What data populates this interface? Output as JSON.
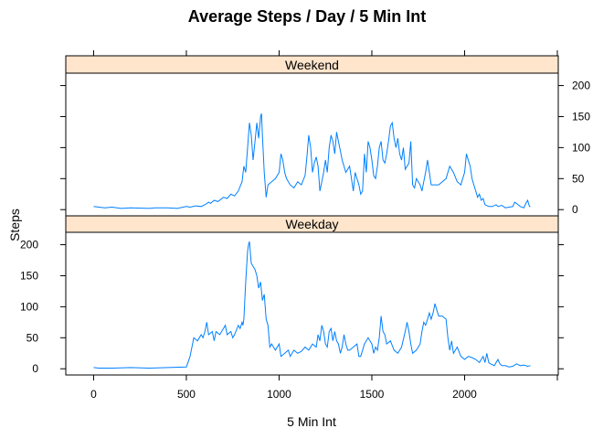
{
  "chart_data": {
    "type": "line",
    "title": "Average Steps / Day / 5 Min Int",
    "xlabel": "5 Min Int",
    "ylabel": "Steps",
    "xlim": [
      -150,
      2505
    ],
    "ylim": [
      -10,
      220
    ],
    "x_ticks": [
      0,
      500,
      1000,
      1500,
      2000
    ],
    "y_ticks": [
      0,
      50,
      100,
      150,
      200
    ],
    "grid": false,
    "legend": "none",
    "color": "#0080ff",
    "strip_color": "#ffe5cc",
    "panels": [
      {
        "name": "Weekend",
        "points": [
          [
            0,
            5
          ],
          [
            30,
            4
          ],
          [
            60,
            3
          ],
          [
            100,
            4
          ],
          [
            150,
            2
          ],
          [
            200,
            3
          ],
          [
            300,
            2
          ],
          [
            330,
            3
          ],
          [
            400,
            3
          ],
          [
            450,
            2
          ],
          [
            500,
            5
          ],
          [
            520,
            4
          ],
          [
            550,
            6
          ],
          [
            580,
            5
          ],
          [
            600,
            8
          ],
          [
            620,
            12
          ],
          [
            630,
            10
          ],
          [
            650,
            15
          ],
          [
            670,
            13
          ],
          [
            700,
            20
          ],
          [
            720,
            18
          ],
          [
            740,
            25
          ],
          [
            760,
            22
          ],
          [
            780,
            30
          ],
          [
            800,
            45
          ],
          [
            810,
            70
          ],
          [
            820,
            60
          ],
          [
            830,
            100
          ],
          [
            840,
            140
          ],
          [
            850,
            120
          ],
          [
            860,
            80
          ],
          [
            870,
            110
          ],
          [
            880,
            140
          ],
          [
            890,
            115
          ],
          [
            900,
            150
          ],
          [
            905,
            155
          ],
          [
            910,
            120
          ],
          [
            920,
            60
          ],
          [
            930,
            20
          ],
          [
            940,
            40
          ],
          [
            960,
            45
          ],
          [
            980,
            50
          ],
          [
            1000,
            60
          ],
          [
            1010,
            90
          ],
          [
            1020,
            80
          ],
          [
            1030,
            60
          ],
          [
            1040,
            50
          ],
          [
            1050,
            45
          ],
          [
            1060,
            40
          ],
          [
            1080,
            35
          ],
          [
            1100,
            45
          ],
          [
            1120,
            40
          ],
          [
            1140,
            55
          ],
          [
            1150,
            85
          ],
          [
            1160,
            120
          ],
          [
            1170,
            100
          ],
          [
            1180,
            60
          ],
          [
            1190,
            75
          ],
          [
            1200,
            85
          ],
          [
            1210,
            70
          ],
          [
            1220,
            30
          ],
          [
            1230,
            45
          ],
          [
            1240,
            60
          ],
          [
            1250,
            80
          ],
          [
            1260,
            60
          ],
          [
            1270,
            100
          ],
          [
            1280,
            120
          ],
          [
            1290,
            110
          ],
          [
            1300,
            90
          ],
          [
            1310,
            125
          ],
          [
            1320,
            110
          ],
          [
            1330,
            95
          ],
          [
            1340,
            80
          ],
          [
            1360,
            60
          ],
          [
            1380,
            70
          ],
          [
            1400,
            30
          ],
          [
            1410,
            60
          ],
          [
            1420,
            50
          ],
          [
            1430,
            40
          ],
          [
            1440,
            25
          ],
          [
            1450,
            30
          ],
          [
            1460,
            90
          ],
          [
            1470,
            60
          ],
          [
            1480,
            110
          ],
          [
            1490,
            100
          ],
          [
            1500,
            80
          ],
          [
            1510,
            55
          ],
          [
            1520,
            50
          ],
          [
            1530,
            70
          ],
          [
            1540,
            100
          ],
          [
            1550,
            110
          ],
          [
            1560,
            80
          ],
          [
            1570,
            75
          ],
          [
            1580,
            90
          ],
          [
            1590,
            110
          ],
          [
            1600,
            135
          ],
          [
            1610,
            140
          ],
          [
            1620,
            115
          ],
          [
            1630,
            100
          ],
          [
            1640,
            115
          ],
          [
            1650,
            90
          ],
          [
            1660,
            80
          ],
          [
            1670,
            100
          ],
          [
            1680,
            65
          ],
          [
            1690,
            70
          ],
          [
            1700,
            75
          ],
          [
            1710,
            110
          ],
          [
            1720,
            40
          ],
          [
            1730,
            35
          ],
          [
            1740,
            50
          ],
          [
            1760,
            40
          ],
          [
            1770,
            30
          ],
          [
            1780,
            45
          ],
          [
            1790,
            60
          ],
          [
            1800,
            80
          ],
          [
            1810,
            60
          ],
          [
            1820,
            40
          ],
          [
            1840,
            40
          ],
          [
            1860,
            40
          ],
          [
            1880,
            45
          ],
          [
            1900,
            50
          ],
          [
            1920,
            70
          ],
          [
            1940,
            60
          ],
          [
            1960,
            45
          ],
          [
            1980,
            40
          ],
          [
            1990,
            50
          ],
          [
            2000,
            60
          ],
          [
            2010,
            90
          ],
          [
            2020,
            80
          ],
          [
            2030,
            70
          ],
          [
            2040,
            50
          ],
          [
            2050,
            40
          ],
          [
            2060,
            30
          ],
          [
            2070,
            20
          ],
          [
            2080,
            25
          ],
          [
            2090,
            15
          ],
          [
            2100,
            18
          ],
          [
            2110,
            8
          ],
          [
            2130,
            5
          ],
          [
            2150,
            5
          ],
          [
            2170,
            8
          ],
          [
            2180,
            5
          ],
          [
            2200,
            7
          ],
          [
            2220,
            3
          ],
          [
            2260,
            5
          ],
          [
            2270,
            12
          ],
          [
            2280,
            10
          ],
          [
            2300,
            5
          ],
          [
            2320,
            3
          ],
          [
            2330,
            10
          ],
          [
            2340,
            15
          ],
          [
            2350,
            5
          ],
          [
            2355,
            5
          ]
        ]
      },
      {
        "name": "Weekday",
        "points": [
          [
            0,
            2
          ],
          [
            30,
            1
          ],
          [
            100,
            1
          ],
          [
            200,
            2
          ],
          [
            300,
            1
          ],
          [
            400,
            2
          ],
          [
            500,
            3
          ],
          [
            520,
            20
          ],
          [
            540,
            50
          ],
          [
            560,
            45
          ],
          [
            570,
            50
          ],
          [
            580,
            55
          ],
          [
            590,
            50
          ],
          [
            600,
            60
          ],
          [
            610,
            75
          ],
          [
            620,
            55
          ],
          [
            640,
            60
          ],
          [
            650,
            45
          ],
          [
            660,
            60
          ],
          [
            680,
            55
          ],
          [
            700,
            65
          ],
          [
            710,
            70
          ],
          [
            720,
            55
          ],
          [
            740,
            60
          ],
          [
            750,
            50
          ],
          [
            760,
            55
          ],
          [
            780,
            70
          ],
          [
            790,
            65
          ],
          [
            800,
            75
          ],
          [
            805,
            70
          ],
          [
            810,
            80
          ],
          [
            820,
            140
          ],
          [
            830,
            190
          ],
          [
            835,
            200
          ],
          [
            840,
            205
          ],
          [
            850,
            170
          ],
          [
            860,
            165
          ],
          [
            870,
            160
          ],
          [
            880,
            150
          ],
          [
            890,
            130
          ],
          [
            900,
            140
          ],
          [
            910,
            110
          ],
          [
            920,
            120
          ],
          [
            930,
            80
          ],
          [
            940,
            70
          ],
          [
            950,
            35
          ],
          [
            960,
            40
          ],
          [
            980,
            30
          ],
          [
            1000,
            40
          ],
          [
            1010,
            20
          ],
          [
            1030,
            25
          ],
          [
            1050,
            30
          ],
          [
            1060,
            20
          ],
          [
            1080,
            30
          ],
          [
            1100,
            25
          ],
          [
            1120,
            28
          ],
          [
            1140,
            35
          ],
          [
            1160,
            30
          ],
          [
            1180,
            40
          ],
          [
            1200,
            35
          ],
          [
            1210,
            55
          ],
          [
            1220,
            45
          ],
          [
            1230,
            70
          ],
          [
            1240,
            60
          ],
          [
            1250,
            40
          ],
          [
            1260,
            35
          ],
          [
            1270,
            60
          ],
          [
            1280,
            65
          ],
          [
            1290,
            45
          ],
          [
            1300,
            60
          ],
          [
            1310,
            45
          ],
          [
            1320,
            40
          ],
          [
            1330,
            25
          ],
          [
            1340,
            35
          ],
          [
            1350,
            55
          ],
          [
            1360,
            40
          ],
          [
            1370,
            30
          ],
          [
            1380,
            30
          ],
          [
            1400,
            35
          ],
          [
            1420,
            40
          ],
          [
            1430,
            20
          ],
          [
            1440,
            20
          ],
          [
            1460,
            40
          ],
          [
            1480,
            50
          ],
          [
            1500,
            40
          ],
          [
            1510,
            25
          ],
          [
            1520,
            35
          ],
          [
            1530,
            30
          ],
          [
            1540,
            50
          ],
          [
            1550,
            85
          ],
          [
            1560,
            60
          ],
          [
            1570,
            55
          ],
          [
            1580,
            40
          ],
          [
            1600,
            45
          ],
          [
            1620,
            30
          ],
          [
            1640,
            25
          ],
          [
            1660,
            35
          ],
          [
            1680,
            60
          ],
          [
            1690,
            75
          ],
          [
            1700,
            60
          ],
          [
            1710,
            40
          ],
          [
            1720,
            25
          ],
          [
            1740,
            30
          ],
          [
            1760,
            40
          ],
          [
            1770,
            60
          ],
          [
            1780,
            75
          ],
          [
            1790,
            70
          ],
          [
            1800,
            80
          ],
          [
            1810,
            90
          ],
          [
            1820,
            80
          ],
          [
            1830,
            90
          ],
          [
            1840,
            105
          ],
          [
            1850,
            95
          ],
          [
            1860,
            85
          ],
          [
            1880,
            85
          ],
          [
            1900,
            80
          ],
          [
            1910,
            50
          ],
          [
            1920,
            30
          ],
          [
            1930,
            45
          ],
          [
            1940,
            25
          ],
          [
            1960,
            35
          ],
          [
            1980,
            20
          ],
          [
            2000,
            15
          ],
          [
            2020,
            20
          ],
          [
            2040,
            18
          ],
          [
            2060,
            15
          ],
          [
            2080,
            10
          ],
          [
            2100,
            20
          ],
          [
            2110,
            10
          ],
          [
            2120,
            25
          ],
          [
            2130,
            10
          ],
          [
            2140,
            8
          ],
          [
            2160,
            5
          ],
          [
            2180,
            15
          ],
          [
            2190,
            8
          ],
          [
            2200,
            5
          ],
          [
            2220,
            5
          ],
          [
            2240,
            3
          ],
          [
            2260,
            4
          ],
          [
            2280,
            8
          ],
          [
            2300,
            5
          ],
          [
            2320,
            6
          ],
          [
            2340,
            4
          ],
          [
            2355,
            5
          ]
        ]
      }
    ]
  }
}
